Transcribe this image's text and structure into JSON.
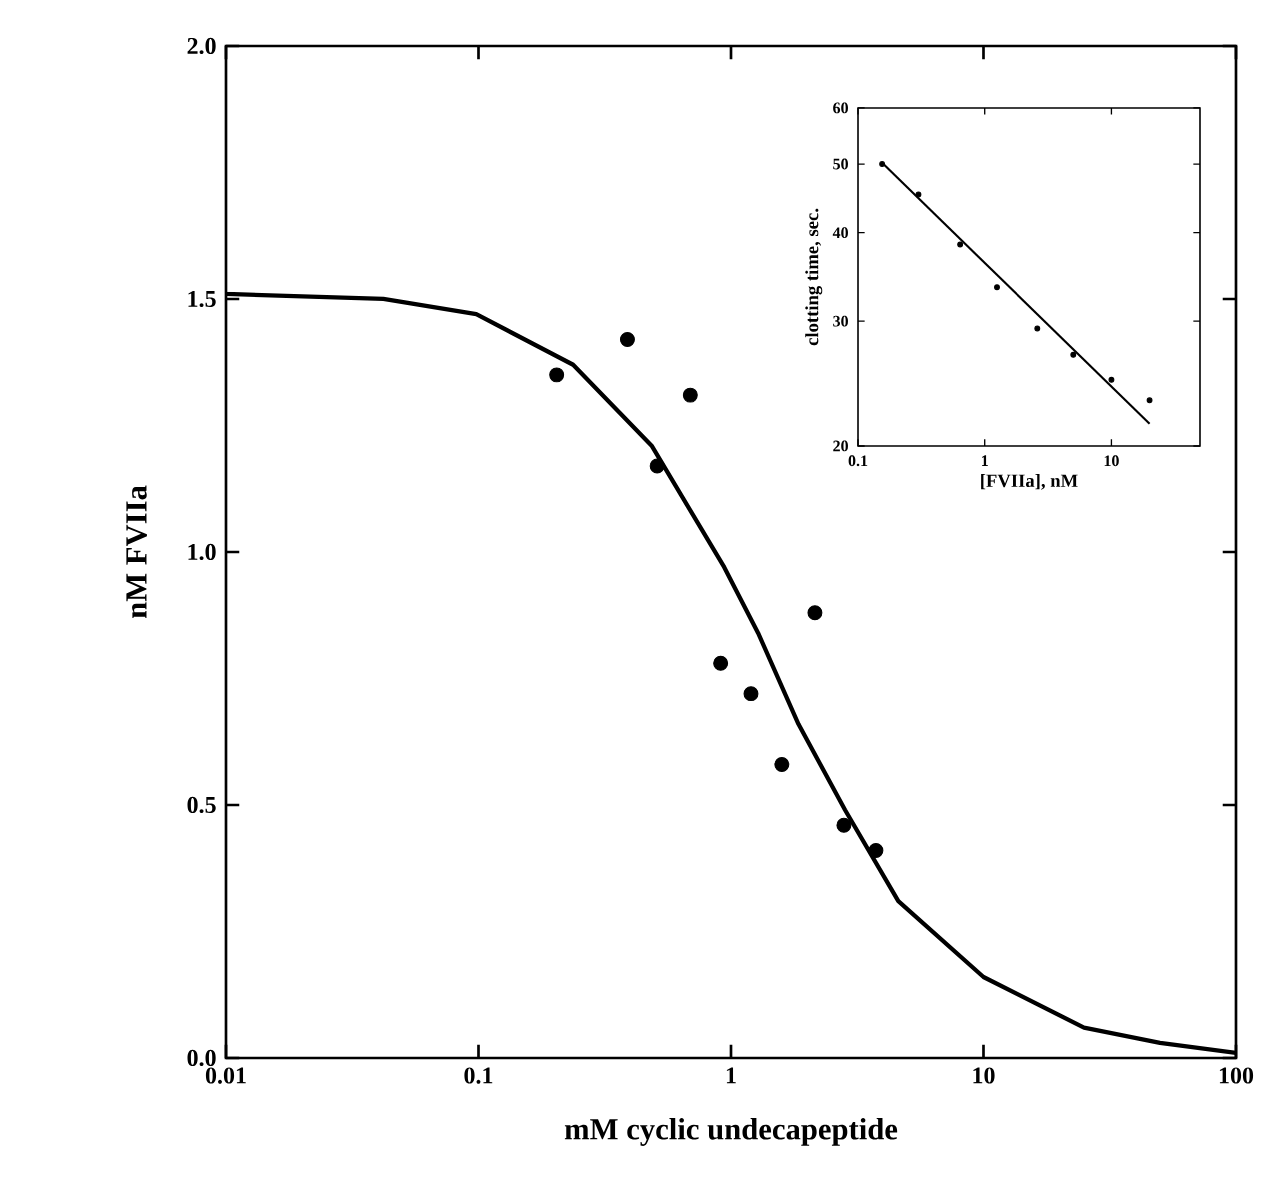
{
  "chart_data": [
    {
      "type": "scatter",
      "xlabel": "mM cyclic undecapeptide",
      "ylabel": "nM FVIIa",
      "log": "x",
      "xlim": [
        0.01,
        100
      ],
      "ylim": [
        0,
        2
      ],
      "xticks": [
        0.01,
        0.1,
        1,
        10,
        100
      ],
      "yticks": [
        {
          "value": 0,
          "label": "0.0"
        },
        {
          "value": 0.5,
          "label": "0.5"
        },
        {
          "value": 1,
          "label": "1.0"
        },
        {
          "value": 1.5,
          "label": "1.5"
        },
        {
          "value": 2,
          "label": "2.0"
        }
      ],
      "series": [
        {
          "type": "line",
          "marker": "none",
          "color": "#000000",
          "line_style": "solid",
          "x": [
            0.01,
            0.042,
            0.098,
            0.237,
            0.485,
            0.94,
            1.28,
            1.85,
            2.83,
            4.6,
            10,
            25,
            50,
            100
          ],
          "values": [
            1.51,
            1.5,
            1.47,
            1.37,
            1.21,
            0.97,
            0.84,
            0.66,
            0.49,
            0.31,
            0.16,
            0.06,
            0.03,
            0.01
          ]
        },
        {
          "marker": "circle",
          "color": "#000000",
          "x": [
            0.204,
            0.389,
            0.51,
            0.69,
            0.91,
            1.2,
            1.59,
            2.15,
            2.8,
            3.75
          ],
          "values": [
            1.35,
            1.42,
            1.17,
            1.31,
            0.78,
            0.72,
            0.58,
            0.88,
            0.46,
            0.41
          ]
        }
      ]
    },
    {
      "type": "scatter",
      "xlabel": "[FVIIa], nM",
      "ylabel": "clotting time, sec.",
      "log": "xy",
      "xlim": [
        0.1,
        50
      ],
      "ylim": [
        20,
        60
      ],
      "xticks": [
        0.1,
        1,
        10
      ],
      "yticks": [
        20,
        30,
        40,
        50,
        60
      ],
      "series": [
        {
          "type": "line",
          "marker": "none",
          "color": "#000000",
          "line_style": "solid",
          "x": [
            0.155,
            20
          ],
          "values": [
            50.2,
            21.5
          ]
        },
        {
          "marker": "circle",
          "color": "#000000",
          "x": [
            0.155,
            0.3,
            0.64,
            1.25,
            2.6,
            5,
            10,
            20
          ],
          "values": [
            50,
            45.3,
            38.5,
            33.5,
            29.3,
            26.9,
            24.8,
            23.2
          ]
        }
      ]
    }
  ]
}
